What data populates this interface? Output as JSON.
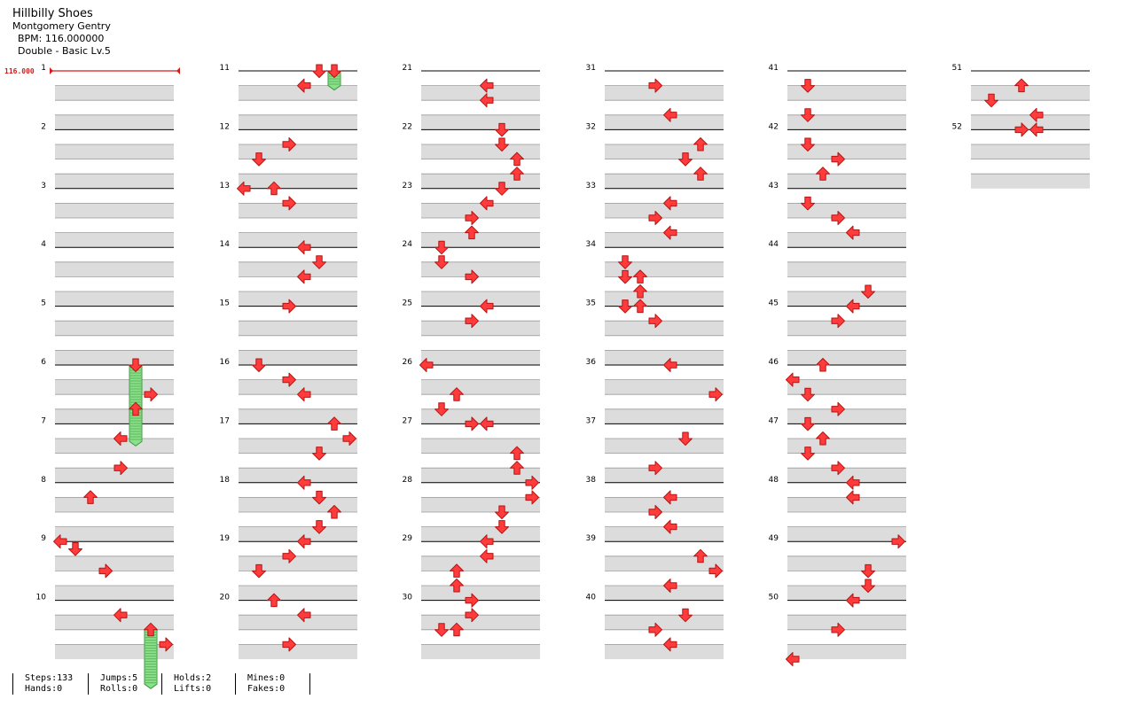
{
  "song": {
    "title": "Hillbilly Shoes",
    "artist": "Montgomery Gentry",
    "bpm_text": "BPM: 116.000000",
    "difficulty": "Double - Basic Lv.5"
  },
  "bpm_marker": "116.000",
  "colors": {
    "arrow_fill": "#ff3b3b",
    "arrow_stroke": "#b51414",
    "hold_fill": "#8be08b",
    "hold_stroke": "#3c9a3c",
    "lane_shade": "#dcdcdc",
    "marker": "#d61b1b"
  },
  "measures": [
    {
      "n": "1",
      "notes": []
    },
    {
      "n": "2",
      "notes": []
    },
    {
      "n": "3",
      "notes": []
    },
    {
      "n": "4",
      "notes": []
    },
    {
      "n": "5",
      "notes": []
    },
    {
      "n": "6",
      "notes": [
        [
          0,
          "D",
          5
        ],
        [
          2,
          "R",
          6
        ],
        [
          3,
          "U",
          5
        ]
      ]
    },
    {
      "n": "7",
      "notes": [
        [
          1,
          "L",
          4
        ],
        [
          3,
          "R",
          4
        ]
      ]
    },
    {
      "n": "8",
      "notes": [
        [
          1,
          "U",
          2
        ]
      ]
    },
    {
      "n": "9",
      "notes": [
        [
          0,
          "L",
          0
        ],
        [
          0.5,
          "D",
          1
        ],
        [
          2,
          "R",
          3
        ]
      ]
    },
    {
      "n": "10",
      "notes": [
        [
          1,
          "L",
          4
        ],
        [
          2,
          "U",
          6
        ],
        [
          3,
          "R",
          7
        ]
      ]
    },
    {
      "n": "11",
      "notes": [
        [
          0,
          "D",
          5
        ],
        [
          0,
          "D",
          6
        ],
        [
          1,
          "L",
          4
        ]
      ]
    },
    {
      "n": "12",
      "notes": [
        [
          1,
          "R",
          3
        ],
        [
          2,
          "D",
          1
        ]
      ]
    },
    {
      "n": "13",
      "notes": [
        [
          0,
          "L",
          0
        ],
        [
          0,
          "U",
          2
        ],
        [
          1,
          "R",
          3
        ]
      ]
    },
    {
      "n": "14",
      "notes": [
        [
          0,
          "L",
          4
        ],
        [
          1,
          "D",
          5
        ],
        [
          2,
          "L",
          4
        ]
      ]
    },
    {
      "n": "15",
      "notes": [
        [
          0,
          "R",
          3
        ]
      ]
    },
    {
      "n": "16",
      "notes": [
        [
          0,
          "D",
          1
        ],
        [
          1,
          "R",
          3
        ],
        [
          2,
          "L",
          4
        ]
      ]
    },
    {
      "n": "17",
      "notes": [
        [
          0,
          "U",
          6
        ],
        [
          1,
          "R",
          7
        ],
        [
          2,
          "D",
          5
        ]
      ]
    },
    {
      "n": "18",
      "notes": [
        [
          0,
          "L",
          4
        ],
        [
          1,
          "D",
          5
        ],
        [
          2,
          "U",
          6
        ],
        [
          3,
          "D",
          5
        ]
      ]
    },
    {
      "n": "19",
      "notes": [
        [
          0,
          "L",
          4
        ],
        [
          1,
          "R",
          3
        ],
        [
          2,
          "D",
          1
        ]
      ]
    },
    {
      "n": "20",
      "notes": [
        [
          0,
          "U",
          2
        ],
        [
          1,
          "L",
          4
        ],
        [
          3,
          "R",
          3
        ]
      ]
    },
    {
      "n": "21",
      "notes": [
        [
          1,
          "L",
          4
        ],
        [
          2,
          "L",
          4
        ]
      ]
    },
    {
      "n": "22",
      "notes": [
        [
          0,
          "D",
          5
        ],
        [
          1,
          "D",
          5
        ],
        [
          2,
          "U",
          6
        ],
        [
          3,
          "U",
          6
        ]
      ]
    },
    {
      "n": "23",
      "notes": [
        [
          0,
          "D",
          5
        ],
        [
          1,
          "L",
          4
        ],
        [
          2,
          "R",
          3
        ],
        [
          3,
          "U",
          3
        ]
      ]
    },
    {
      "n": "24",
      "notes": [
        [
          0,
          "D",
          1
        ],
        [
          1,
          "D",
          1
        ],
        [
          2,
          "R",
          3
        ]
      ]
    },
    {
      "n": "25",
      "notes": [
        [
          0,
          "L",
          4
        ],
        [
          1,
          "R",
          3
        ]
      ]
    },
    {
      "n": "26",
      "notes": [
        [
          0,
          "L",
          0
        ],
        [
          2,
          "U",
          2
        ],
        [
          3,
          "D",
          1
        ]
      ]
    },
    {
      "n": "27",
      "notes": [
        [
          0,
          "R",
          3
        ],
        [
          0,
          "L",
          4
        ],
        [
          2,
          "U",
          6
        ],
        [
          3,
          "U",
          6
        ]
      ]
    },
    {
      "n": "28",
      "notes": [
        [
          0,
          "R",
          7
        ],
        [
          1,
          "R",
          7
        ],
        [
          2,
          "D",
          5
        ],
        [
          3,
          "D",
          5
        ]
      ]
    },
    {
      "n": "29",
      "notes": [
        [
          0,
          "L",
          4
        ],
        [
          1,
          "L",
          4
        ],
        [
          2,
          "U",
          2
        ],
        [
          3,
          "U",
          2
        ]
      ]
    },
    {
      "n": "30",
      "notes": [
        [
          0,
          "R",
          3
        ],
        [
          1,
          "R",
          3
        ],
        [
          2,
          "D",
          1
        ],
        [
          2,
          "U",
          2
        ]
      ]
    },
    {
      "n": "31",
      "notes": [
        [
          1,
          "R",
          3
        ],
        [
          3,
          "L",
          4
        ]
      ]
    },
    {
      "n": "32",
      "notes": [
        [
          1,
          "U",
          6
        ],
        [
          2,
          "D",
          5
        ],
        [
          3,
          "U",
          6
        ]
      ]
    },
    {
      "n": "33",
      "notes": [
        [
          1,
          "L",
          4
        ],
        [
          2,
          "R",
          3
        ],
        [
          3,
          "L",
          4
        ]
      ]
    },
    {
      "n": "34",
      "notes": [
        [
          1,
          "D",
          1
        ],
        [
          2,
          "D",
          1
        ],
        [
          2,
          "U",
          2
        ],
        [
          3,
          "U",
          2
        ]
      ]
    },
    {
      "n": "35",
      "notes": [
        [
          0,
          "D",
          1
        ],
        [
          0,
          "U",
          2
        ],
        [
          1,
          "R",
          3
        ]
      ]
    },
    {
      "n": "36",
      "notes": [
        [
          0,
          "L",
          4
        ],
        [
          2,
          "R",
          7
        ]
      ]
    },
    {
      "n": "37",
      "notes": [
        [
          1,
          "D",
          5
        ],
        [
          3,
          "R",
          3
        ]
      ]
    },
    {
      "n": "38",
      "notes": [
        [
          1,
          "L",
          4
        ],
        [
          2,
          "R",
          3
        ],
        [
          3,
          "L",
          4
        ]
      ]
    },
    {
      "n": "39",
      "notes": [
        [
          1,
          "U",
          6
        ],
        [
          2,
          "R",
          7
        ],
        [
          3,
          "L",
          4
        ]
      ]
    },
    {
      "n": "40",
      "notes": [
        [
          1,
          "D",
          5
        ],
        [
          2,
          "R",
          3
        ],
        [
          3,
          "L",
          4
        ]
      ]
    },
    {
      "n": "41",
      "notes": [
        [
          1,
          "D",
          1
        ],
        [
          3,
          "D",
          1
        ]
      ]
    },
    {
      "n": "42",
      "notes": [
        [
          1,
          "D",
          1
        ],
        [
          2,
          "R",
          3
        ],
        [
          3,
          "U",
          2
        ]
      ]
    },
    {
      "n": "43",
      "notes": [
        [
          1,
          "D",
          1
        ],
        [
          2,
          "R",
          3
        ],
        [
          3,
          "L",
          4
        ]
      ]
    },
    {
      "n": "44",
      "notes": [
        [
          3,
          "D",
          5
        ]
      ]
    },
    {
      "n": "45",
      "notes": [
        [
          0,
          "L",
          4
        ],
        [
          1,
          "R",
          3
        ]
      ]
    },
    {
      "n": "46",
      "notes": [
        [
          0,
          "U",
          2
        ],
        [
          1,
          "L",
          0
        ],
        [
          2,
          "D",
          1
        ],
        [
          3,
          "R",
          3
        ]
      ]
    },
    {
      "n": "47",
      "notes": [
        [
          0,
          "D",
          1
        ],
        [
          1,
          "U",
          2
        ],
        [
          2,
          "D",
          1
        ],
        [
          3,
          "R",
          3
        ]
      ]
    },
    {
      "n": "48",
      "notes": [
        [
          0,
          "L",
          4
        ],
        [
          1,
          "L",
          4
        ]
      ]
    },
    {
      "n": "49",
      "notes": [
        [
          0,
          "R",
          7
        ],
        [
          2,
          "D",
          5
        ],
        [
          3,
          "D",
          5
        ]
      ]
    },
    {
      "n": "50",
      "notes": [
        [
          0,
          "L",
          4
        ],
        [
          2,
          "R",
          3
        ],
        [
          4,
          "L",
          0
        ]
      ]
    },
    {
      "n": "51",
      "notes": [
        [
          1,
          "U",
          3
        ],
        [
          2,
          "D",
          1
        ],
        [
          3,
          "L",
          4
        ]
      ]
    },
    {
      "n": "52",
      "notes": [
        [
          0,
          "R",
          3
        ],
        [
          0,
          "L",
          4
        ]
      ]
    }
  ],
  "holds": [
    {
      "measure": 6,
      "beat": 0,
      "length": 5.5,
      "col": 5
    },
    {
      "measure": 10,
      "beat": 2,
      "length": 4,
      "col": 6
    },
    {
      "measure": 11,
      "beat": 0,
      "length": 1.3,
      "col": 6
    }
  ],
  "stats": [
    {
      "line1": "Steps:133",
      "line2": "Hands:0"
    },
    {
      "line1": "Jumps:5",
      "line2": "Rolls:0"
    },
    {
      "line1": "Holds:2",
      "line2": "Lifts:0"
    },
    {
      "line1": "Mines:0",
      "line2": "Fakes:0"
    }
  ]
}
